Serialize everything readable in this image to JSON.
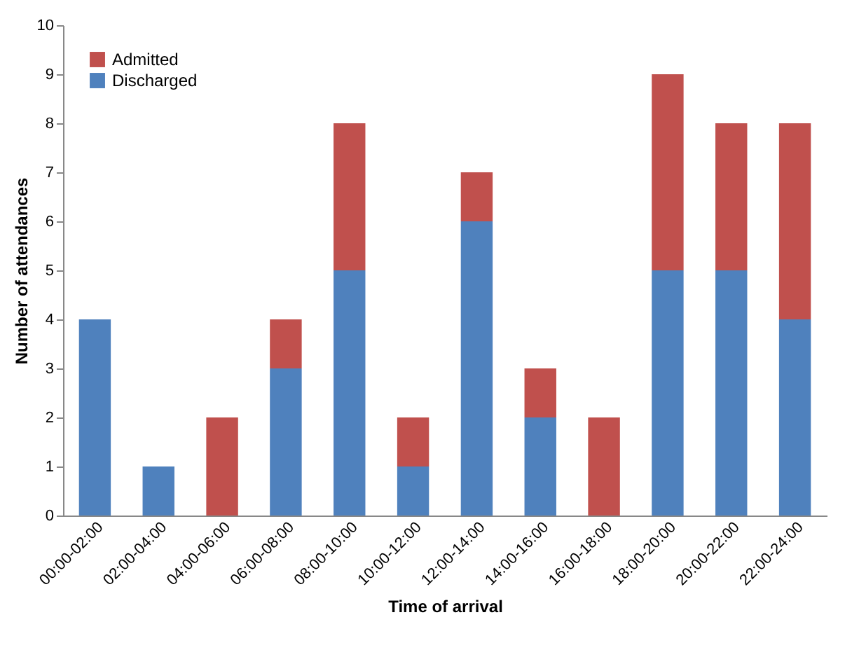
{
  "chart_data": {
    "type": "bar",
    "stacked": true,
    "xlabel": "Time of arrival",
    "ylabel": "Number of attendances",
    "categories": [
      "00:00-02:00",
      "02:00-04:00",
      "04:00-06:00",
      "06:00-08:00",
      "08:00-10:00",
      "10:00-12:00",
      "12:00-14:00",
      "14:00-16:00",
      "16:00-18:00",
      "18:00-20:00",
      "20:00-22:00",
      "22:00-24:00"
    ],
    "series": [
      {
        "name": "Discharged",
        "color": "#4f81bd",
        "values": [
          4,
          1,
          0,
          3,
          5,
          1,
          6,
          2,
          0,
          5,
          5,
          4
        ]
      },
      {
        "name": "Admitted",
        "color": "#c0504d",
        "values": [
          0,
          0,
          2,
          1,
          3,
          1,
          1,
          1,
          2,
          4,
          3,
          4
        ]
      }
    ],
    "ylim": [
      0,
      10
    ],
    "yticks": [
      0,
      1,
      2,
      3,
      4,
      5,
      6,
      7,
      8,
      9,
      10
    ],
    "grid": false,
    "legend": "top left"
  }
}
